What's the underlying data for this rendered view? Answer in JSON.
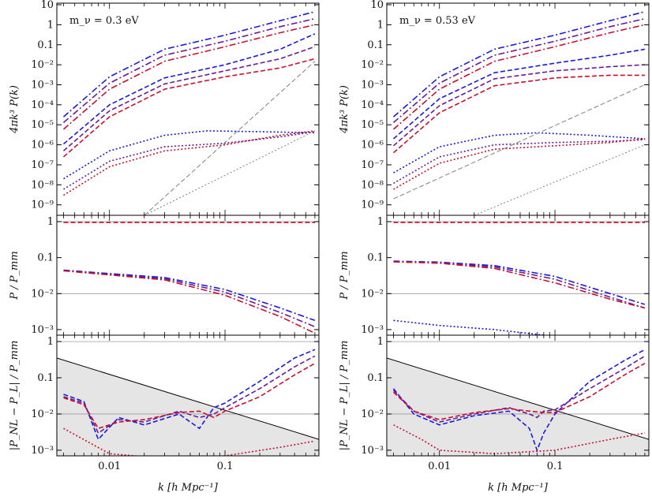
{
  "chart_data": [
    {
      "type": "line",
      "panel": "left-top",
      "annotation": "m_ν = 0.3 eV",
      "ylabel": "4πk³ P(k)",
      "yscale": "log",
      "xscale": "log",
      "ylim": [
        3e-10,
        12
      ],
      "xlim": [
        0.0035,
        0.65
      ],
      "ytick_labels": [
        "10",
        "1",
        "0.1",
        "10⁻²",
        "10⁻³",
        "10⁻⁴",
        "10⁻⁵",
        "10⁻⁶",
        "10⁻⁷",
        "10⁻⁸",
        "10⁻⁹"
      ],
      "ytick_values": [
        10,
        1,
        0.1,
        0.01,
        0.001,
        0.0001,
        1e-05,
        1e-06,
        1e-07,
        1e-08,
        1e-09
      ],
      "series": [
        {
          "color": "#1a1adc",
          "dash": "dashdot",
          "x": [
            0.004,
            0.01,
            0.03,
            0.1,
            0.3,
            0.6
          ],
          "y": [
            2.5e-05,
            0.0025,
            0.06,
            0.3,
            1.6,
            4.5
          ]
        },
        {
          "color": "#6a1a9a",
          "dash": "dashdot",
          "x": [
            0.004,
            0.01,
            0.03,
            0.1,
            0.3,
            0.6
          ],
          "y": [
            1.3e-05,
            0.0012,
            0.03,
            0.15,
            0.8,
            2.0
          ]
        },
        {
          "color": "#c8102e",
          "dash": "dashdot",
          "x": [
            0.004,
            0.01,
            0.03,
            0.1,
            0.3,
            0.6
          ],
          "y": [
            6e-06,
            0.0006,
            0.015,
            0.08,
            0.4,
            1.0
          ]
        },
        {
          "color": "#1a1adc",
          "dash": "dash",
          "x": [
            0.004,
            0.01,
            0.03,
            0.1,
            0.3,
            0.6
          ],
          "y": [
            1.1e-06,
            0.0001,
            0.0022,
            0.01,
            0.06,
            0.35
          ]
        },
        {
          "color": "#6a1a9a",
          "dash": "dash",
          "x": [
            0.004,
            0.01,
            0.03,
            0.1,
            0.3,
            0.6
          ],
          "y": [
            5e-07,
            5e-05,
            0.0011,
            0.005,
            0.02,
            0.08
          ]
        },
        {
          "color": "#c8102e",
          "dash": "dash",
          "x": [
            0.004,
            0.01,
            0.03,
            0.1,
            0.3,
            0.6
          ],
          "y": [
            2.5e-07,
            2.5e-05,
            0.0006,
            0.0025,
            0.007,
            0.02
          ]
        },
        {
          "color": "#1a1adc",
          "dash": "dot",
          "x": [
            0.004,
            0.01,
            0.03,
            0.07,
            0.2,
            0.6
          ],
          "y": [
            2e-08,
            5e-07,
            3e-06,
            5e-06,
            4.5e-06,
            4e-06
          ]
        },
        {
          "color": "#6a1a9a",
          "dash": "dot",
          "x": [
            0.004,
            0.01,
            0.03,
            0.1,
            0.3,
            0.6
          ],
          "y": [
            6e-09,
            1.5e-07,
            8e-07,
            1.2e-06,
            2.5e-06,
            4.5e-06
          ]
        },
        {
          "color": "#c8102e",
          "dash": "dot",
          "x": [
            0.004,
            0.01,
            0.03,
            0.1,
            0.3,
            0.6
          ],
          "y": [
            3e-09,
            8e-08,
            5e-07,
            1e-06,
            3e-06,
            5e-06
          ]
        },
        {
          "color": "#808080",
          "dash": "dash",
          "x": [
            0.02,
            0.6
          ],
          "y": [
            3e-10,
            0.015
          ]
        },
        {
          "color": "#808080",
          "dash": "dot",
          "x": [
            0.02,
            0.6
          ],
          "y": [
            3e-10,
            5e-06
          ]
        }
      ]
    },
    {
      "type": "line",
      "panel": "left-middle",
      "ylabel": "P / P_mm",
      "yscale": "log",
      "xscale": "log",
      "ylim": [
        0.0007,
        1.5
      ],
      "xlim": [
        0.0035,
        0.65
      ],
      "ytick_labels": [
        "1",
        "0.1",
        "10⁻²",
        "10⁻³"
      ],
      "ytick_values": [
        1,
        0.1,
        0.01,
        0.001
      ],
      "series": [
        {
          "color": "#1a1adc",
          "dash": "dashdot",
          "x": [
            0.004,
            0.01,
            0.03,
            0.1,
            0.3,
            0.6
          ],
          "y": [
            0.045,
            0.036,
            0.028,
            0.013,
            0.004,
            0.0018
          ]
        },
        {
          "color": "#6a1a9a",
          "dash": "dashdot",
          "x": [
            0.004,
            0.01,
            0.03,
            0.1,
            0.3,
            0.6
          ],
          "y": [
            0.044,
            0.034,
            0.026,
            0.011,
            0.003,
            0.0012
          ]
        },
        {
          "color": "#c8102e",
          "dash": "dashdot",
          "x": [
            0.004,
            0.01,
            0.03,
            0.1,
            0.3,
            0.6
          ],
          "y": [
            0.043,
            0.033,
            0.024,
            0.009,
            0.0023,
            0.0008
          ]
        },
        {
          "color": "#c8102e",
          "dash": "dash",
          "x": [
            0.004,
            0.6
          ],
          "y": [
            0.95,
            0.95
          ]
        }
      ]
    },
    {
      "type": "line",
      "panel": "left-bottom",
      "ylabel": "|P_NL − P_L| / P_mm",
      "xlabel": "k [h Mpc⁻¹]",
      "yscale": "log",
      "xscale": "log",
      "ylim": [
        0.0007,
        1.5
      ],
      "xlim": [
        0.0035,
        0.65
      ],
      "ytick_labels": [
        "1",
        "0.1",
        "10⁻²",
        "10⁻³"
      ],
      "ytick_values": [
        1,
        0.1,
        0.01,
        0.001
      ],
      "xtick_labels": [
        "0.01",
        "0.1"
      ],
      "xtick_values": [
        0.01,
        0.1
      ],
      "series": [
        {
          "color": "#000000",
          "dash": "solid",
          "x": [
            0.0035,
            0.65
          ],
          "y": [
            0.35,
            0.002
          ]
        },
        {
          "color": "#1a1adc",
          "dash": "dash",
          "x": [
            0.004,
            0.006,
            0.008,
            0.012,
            0.02,
            0.04,
            0.06,
            0.08,
            0.1,
            0.2,
            0.4,
            0.6
          ],
          "y": [
            0.035,
            0.022,
            0.002,
            0.008,
            0.005,
            0.01,
            0.004,
            0.015,
            0.02,
            0.08,
            0.35,
            0.6
          ]
        },
        {
          "color": "#6a1a9a",
          "dash": "dash",
          "x": [
            0.004,
            0.006,
            0.008,
            0.012,
            0.02,
            0.04,
            0.06,
            0.08,
            0.1,
            0.2,
            0.4,
            0.6
          ],
          "y": [
            0.03,
            0.02,
            0.003,
            0.007,
            0.006,
            0.012,
            0.008,
            0.01,
            0.015,
            0.05,
            0.2,
            0.4
          ]
        },
        {
          "color": "#c8102e",
          "dash": "dash",
          "x": [
            0.004,
            0.006,
            0.008,
            0.012,
            0.02,
            0.04,
            0.06,
            0.08,
            0.1,
            0.2,
            0.4,
            0.6
          ],
          "y": [
            0.028,
            0.018,
            0.004,
            0.006,
            0.007,
            0.011,
            0.012,
            0.008,
            0.012,
            0.03,
            0.12,
            0.25
          ]
        },
        {
          "color": "#c8102e",
          "dash": "dot",
          "x": [
            0.004,
            0.007,
            0.01,
            0.03,
            0.1,
            0.3,
            0.6
          ],
          "y": [
            0.004,
            0.0015,
            0.0008,
            0.0006,
            0.0007,
            0.0012,
            0.0018
          ]
        }
      ]
    },
    {
      "type": "line",
      "panel": "right-top",
      "annotation": "m_ν = 0.53 eV",
      "ylabel": "4πk³ P(k)",
      "yscale": "log",
      "xscale": "log",
      "ylim": [
        3e-10,
        12
      ],
      "xlim": [
        0.0035,
        0.65
      ],
      "ytick_labels": [
        "10",
        "1",
        "0.1",
        "10⁻²",
        "10⁻³",
        "10⁻⁴",
        "10⁻⁵",
        "10⁻⁶",
        "10⁻⁷",
        "10⁻⁸",
        "10⁻⁹"
      ],
      "ytick_values": [
        10,
        1,
        0.1,
        0.01,
        0.001,
        0.0001,
        1e-05,
        1e-06,
        1e-07,
        1e-08,
        1e-09
      ],
      "series": [
        {
          "color": "#1a1adc",
          "dash": "dashdot",
          "x": [
            0.004,
            0.01,
            0.03,
            0.1,
            0.3,
            0.6
          ],
          "y": [
            2.5e-05,
            0.0025,
            0.06,
            0.3,
            1.6,
            4.5
          ]
        },
        {
          "color": "#6a1a9a",
          "dash": "dashdot",
          "x": [
            0.004,
            0.01,
            0.03,
            0.1,
            0.3,
            0.6
          ],
          "y": [
            1.3e-05,
            0.0012,
            0.03,
            0.15,
            0.8,
            2.0
          ]
        },
        {
          "color": "#c8102e",
          "dash": "dashdot",
          "x": [
            0.004,
            0.01,
            0.03,
            0.1,
            0.3,
            0.6
          ],
          "y": [
            6e-06,
            0.0006,
            0.015,
            0.08,
            0.4,
            1.0
          ]
        },
        {
          "color": "#1a1adc",
          "dash": "dash",
          "x": [
            0.004,
            0.01,
            0.03,
            0.1,
            0.3,
            0.6
          ],
          "y": [
            2e-06,
            0.0002,
            0.004,
            0.012,
            0.03,
            0.06
          ]
        },
        {
          "color": "#6a1a9a",
          "dash": "dash",
          "x": [
            0.004,
            0.01,
            0.03,
            0.1,
            0.3,
            0.6
          ],
          "y": [
            9e-07,
            9e-05,
            0.002,
            0.005,
            0.008,
            0.01
          ]
        },
        {
          "color": "#c8102e",
          "dash": "dash",
          "x": [
            0.004,
            0.01,
            0.03,
            0.1,
            0.3,
            0.6
          ],
          "y": [
            4e-07,
            4e-05,
            0.0009,
            0.0022,
            0.003,
            0.003
          ]
        },
        {
          "color": "#1a1adc",
          "dash": "dot",
          "x": [
            0.004,
            0.01,
            0.03,
            0.07,
            0.2,
            0.6
          ],
          "y": [
            4e-08,
            8e-07,
            3e-06,
            4e-06,
            3e-06,
            2e-06
          ]
        },
        {
          "color": "#6a1a9a",
          "dash": "dot",
          "x": [
            0.004,
            0.01,
            0.03,
            0.1,
            0.3,
            0.6
          ],
          "y": [
            1.2e-08,
            2.5e-07,
            1e-06,
            1.3e-06,
            1.5e-06,
            1.8e-06
          ]
        },
        {
          "color": "#c8102e",
          "dash": "dot",
          "x": [
            0.004,
            0.01,
            0.03,
            0.1,
            0.3,
            0.6
          ],
          "y": [
            6e-09,
            1.2e-07,
            6e-07,
            9e-07,
            1.3e-06,
            2e-06
          ]
        },
        {
          "color": "#808080",
          "dash": "dash",
          "x": [
            0.004,
            0.6
          ],
          "y": [
            2e-09,
            0.001
          ]
        },
        {
          "color": "#808080",
          "dash": "dot",
          "x": [
            0.02,
            0.6
          ],
          "y": [
            3e-10,
            1e-06
          ]
        }
      ]
    },
    {
      "type": "line",
      "panel": "right-middle",
      "ylabel": "P / P_mm",
      "yscale": "log",
      "xscale": "log",
      "ylim": [
        0.0007,
        1.5
      ],
      "xlim": [
        0.0035,
        0.65
      ],
      "ytick_labels": [
        "1",
        "0.1",
        "10⁻²",
        "10⁻³"
      ],
      "ytick_values": [
        1,
        0.1,
        0.01,
        0.001
      ],
      "series": [
        {
          "color": "#1a1adc",
          "dash": "dashdot",
          "x": [
            0.004,
            0.01,
            0.03,
            0.1,
            0.3,
            0.6
          ],
          "y": [
            0.08,
            0.075,
            0.06,
            0.03,
            0.01,
            0.005
          ]
        },
        {
          "color": "#6a1a9a",
          "dash": "dashdot",
          "x": [
            0.004,
            0.01,
            0.03,
            0.1,
            0.3,
            0.6
          ],
          "y": [
            0.078,
            0.072,
            0.055,
            0.025,
            0.008,
            0.004
          ]
        },
        {
          "color": "#c8102e",
          "dash": "dashdot",
          "x": [
            0.004,
            0.01,
            0.03,
            0.1,
            0.3,
            0.6
          ],
          "y": [
            0.076,
            0.07,
            0.05,
            0.02,
            0.007,
            0.004
          ]
        },
        {
          "color": "#c8102e",
          "dash": "dash",
          "x": [
            0.004,
            0.6
          ],
          "y": [
            0.95,
            0.95
          ]
        },
        {
          "color": "#1a1adc",
          "dash": "dot",
          "x": [
            0.004,
            0.01,
            0.03,
            0.08
          ],
          "y": [
            0.0018,
            0.0013,
            0.001,
            0.0007
          ]
        }
      ]
    },
    {
      "type": "line",
      "panel": "right-bottom",
      "ylabel": "|P_NL − P_L| / P_mm",
      "xlabel": "k [h Mpc⁻¹]",
      "yscale": "log",
      "xscale": "log",
      "ylim": [
        0.0007,
        1.5
      ],
      "xlim": [
        0.0035,
        0.65
      ],
      "ytick_labels": [
        "1",
        "0.1",
        "10⁻²",
        "10⁻³"
      ],
      "ytick_values": [
        1,
        0.1,
        0.01,
        0.001
      ],
      "xtick_labels": [
        "0.01",
        "0.1"
      ],
      "xtick_values": [
        0.01,
        0.1
      ],
      "series": [
        {
          "color": "#000000",
          "dash": "solid",
          "x": [
            0.0035,
            0.65
          ],
          "y": [
            0.35,
            0.002
          ]
        },
        {
          "color": "#1a1adc",
          "dash": "dash",
          "x": [
            0.004,
            0.006,
            0.01,
            0.02,
            0.04,
            0.06,
            0.07,
            0.08,
            0.1,
            0.2,
            0.4,
            0.6
          ],
          "y": [
            0.05,
            0.01,
            0.005,
            0.009,
            0.012,
            0.004,
            0.001,
            0.003,
            0.01,
            0.08,
            0.3,
            0.6
          ]
        },
        {
          "color": "#6a1a9a",
          "dash": "dash",
          "x": [
            0.004,
            0.006,
            0.01,
            0.02,
            0.04,
            0.06,
            0.07,
            0.08,
            0.1,
            0.2,
            0.4,
            0.6
          ],
          "y": [
            0.045,
            0.012,
            0.006,
            0.01,
            0.015,
            0.01,
            0.008,
            0.012,
            0.013,
            0.05,
            0.18,
            0.4
          ]
        },
        {
          "color": "#c8102e",
          "dash": "dash",
          "x": [
            0.004,
            0.006,
            0.01,
            0.02,
            0.04,
            0.06,
            0.08,
            0.1,
            0.2,
            0.4,
            0.6
          ],
          "y": [
            0.04,
            0.012,
            0.007,
            0.011,
            0.014,
            0.012,
            0.011,
            0.011,
            0.03,
            0.12,
            0.25
          ]
        },
        {
          "color": "#c8102e",
          "dash": "dot",
          "x": [
            0.004,
            0.007,
            0.01,
            0.03,
            0.1,
            0.3,
            0.6
          ],
          "y": [
            0.005,
            0.002,
            0.001,
            0.0008,
            0.001,
            0.002,
            0.003
          ]
        }
      ]
    }
  ]
}
